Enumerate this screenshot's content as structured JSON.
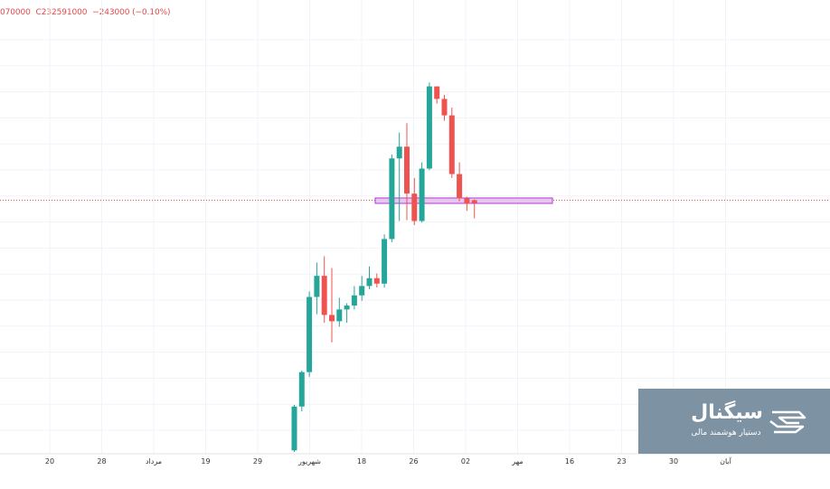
{
  "header": {
    "open_fragment": "070000",
    "close_label": "C232591000",
    "change": "−243000 (−0.10%)"
  },
  "brand": {
    "name": "سیگنال",
    "tagline": "دستیار هوشمند مالی",
    "logo_icon": "signal-s-logo-icon",
    "background": "#7d93a3"
  },
  "colors": {
    "up": "#26a69a",
    "down": "#ef5350",
    "price_line": "#ef5350",
    "zone_fill": "#e9c6f0",
    "zone_stroke": "#b13bd1"
  },
  "chart_data": {
    "type": "candlestick",
    "x_axis_labels": [
      "20",
      "28",
      "مرداد",
      "19",
      "29",
      "شهریور",
      "18",
      "26",
      "02",
      "مهر",
      "16",
      "23",
      "30",
      "آبان"
    ],
    "grid": true,
    "current_price_line": true,
    "support_zone": {
      "from_candle": 14,
      "to_candle": 41,
      "note": "highlighted rectangle"
    },
    "candles": [
      {
        "o": 2,
        "h": 60,
        "l": 0,
        "c": 58
      },
      {
        "o": 58,
        "h": 104,
        "l": 52,
        "c": 102
      },
      {
        "o": 102,
        "h": 205,
        "l": 96,
        "c": 198
      },
      {
        "o": 198,
        "h": 242,
        "l": 176,
        "c": 225
      },
      {
        "o": 225,
        "h": 250,
        "l": 165,
        "c": 175
      },
      {
        "o": 175,
        "h": 235,
        "l": 140,
        "c": 167
      },
      {
        "o": 167,
        "h": 197,
        "l": 160,
        "c": 182
      },
      {
        "o": 182,
        "h": 190,
        "l": 165,
        "c": 187
      },
      {
        "o": 187,
        "h": 212,
        "l": 182,
        "c": 200
      },
      {
        "o": 200,
        "h": 225,
        "l": 193,
        "c": 212
      },
      {
        "o": 212,
        "h": 237,
        "l": 208,
        "c": 222
      },
      {
        "o": 222,
        "h": 228,
        "l": 210,
        "c": 215
      },
      {
        "o": 215,
        "h": 278,
        "l": 210,
        "c": 272
      },
      {
        "o": 272,
        "h": 380,
        "l": 268,
        "c": 375
      },
      {
        "o": 375,
        "h": 408,
        "l": 295,
        "c": 390
      },
      {
        "o": 390,
        "h": 420,
        "l": 296,
        "c": 330
      },
      {
        "o": 330,
        "h": 350,
        "l": 290,
        "c": 295
      },
      {
        "o": 295,
        "h": 370,
        "l": 293,
        "c": 362
      },
      {
        "o": 362,
        "h": 472,
        "l": 360,
        "c": 467
      },
      {
        "o": 467,
        "h": 467,
        "l": 445,
        "c": 451
      },
      {
        "o": 451,
        "h": 456,
        "l": 423,
        "c": 430
      },
      {
        "o": 430,
        "h": 440,
        "l": 350,
        "c": 355
      },
      {
        "o": 355,
        "h": 370,
        "l": 320,
        "c": 324
      },
      {
        "o": 324,
        "h": 326,
        "l": 308,
        "c": 317
      }
    ],
    "extra_wick_candle": {
      "o": 317,
      "h": 318,
      "l": 303,
      "c": 316
    }
  }
}
